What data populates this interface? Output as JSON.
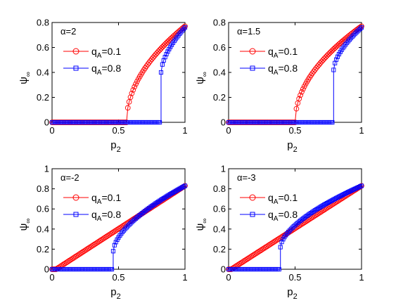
{
  "chart_data": [
    {
      "type": "line",
      "xlabel_main": "p",
      "xlabel_sub": "2",
      "ylabel_main": "ψ",
      "ylabel_sub": "∞",
      "xlim": [
        0,
        1
      ],
      "ylim": [
        0,
        0.8
      ],
      "xticks": [
        0,
        0.5,
        1
      ],
      "xtick_labels": [
        "0",
        "0.5",
        "1"
      ],
      "yticks": [
        0,
        0.2,
        0.4,
        0.6,
        0.8
      ],
      "ytick_labels": [
        "0",
        "0.2",
        "0.4",
        "0.6",
        "0.8"
      ],
      "annotation": "α=2",
      "grid": false,
      "legend_position": "top-left",
      "series": [
        {
          "name_main": "q",
          "name_sub": "A",
          "name_rest": "=0.1",
          "marker": "circle",
          "color": "#ff0000",
          "kind": "sqrt",
          "pc": 0.56,
          "xend": 1.0,
          "yend": 0.77
        },
        {
          "name_main": "q",
          "name_sub": "A",
          "name_rest": "=0.8",
          "marker": "square",
          "color": "#0000ff",
          "kind": "jump",
          "pc": 0.82,
          "xend": 1.0,
          "yend": 0.76,
          "y_jump": 0.4
        }
      ]
    },
    {
      "type": "line",
      "xlabel_main": "p",
      "xlabel_sub": "2",
      "ylabel_main": "ψ",
      "ylabel_sub": "∞",
      "xlim": [
        0,
        1
      ],
      "ylim": [
        0,
        0.8
      ],
      "xticks": [
        0,
        0.5,
        1
      ],
      "xtick_labels": [
        "0",
        "0.5",
        "1"
      ],
      "yticks": [
        0,
        0.2,
        0.4,
        0.6,
        0.8
      ],
      "ytick_labels": [
        "0",
        "0.2",
        "0.4",
        "0.6",
        "0.8"
      ],
      "annotation": "α=1.5",
      "grid": false,
      "legend_position": "top-left",
      "series": [
        {
          "name_main": "q",
          "name_sub": "A",
          "name_rest": "=0.1",
          "marker": "circle",
          "color": "#ff0000",
          "kind": "sqrt",
          "pc": 0.5,
          "xend": 1.0,
          "yend": 0.77
        },
        {
          "name_main": "q",
          "name_sub": "A",
          "name_rest": "=0.8",
          "marker": "square",
          "color": "#0000ff",
          "kind": "jump",
          "pc": 0.79,
          "xend": 1.0,
          "yend": 0.76,
          "y_jump": 0.42
        }
      ]
    },
    {
      "type": "line",
      "xlabel_main": "p",
      "xlabel_sub": "2",
      "ylabel_main": "ψ",
      "ylabel_sub": "∞",
      "xlim": [
        0,
        1
      ],
      "ylim": [
        0,
        1
      ],
      "xticks": [
        0,
        0.5,
        1
      ],
      "xtick_labels": [
        "0",
        "0.5",
        "1"
      ],
      "yticks": [
        0,
        0.2,
        0.4,
        0.6,
        0.8,
        1
      ],
      "ytick_labels": [
        "0",
        "0.2",
        "0.4",
        "0.6",
        "0.8",
        "1"
      ],
      "annotation": "α=-2",
      "grid": false,
      "legend_position": "top-left",
      "series": [
        {
          "name_main": "q",
          "name_sub": "A",
          "name_rest": "=0.1",
          "marker": "circle",
          "color": "#ff0000",
          "kind": "linear",
          "pc": 0.03,
          "xend": 1.0,
          "yend": 0.83
        },
        {
          "name_main": "q",
          "name_sub": "A",
          "name_rest": "=0.8",
          "marker": "square",
          "color": "#0000ff",
          "kind": "jump",
          "pc": 0.46,
          "xend": 1.0,
          "yend": 0.83,
          "y_jump": 0.18
        }
      ]
    },
    {
      "type": "line",
      "xlabel_main": "p",
      "xlabel_sub": "2",
      "ylabel_main": "ψ",
      "ylabel_sub": "∞",
      "xlim": [
        0,
        1
      ],
      "ylim": [
        0,
        1
      ],
      "xticks": [
        0,
        0.5,
        1
      ],
      "xtick_labels": [
        "0",
        "0.5",
        "1"
      ],
      "yticks": [
        0,
        0.2,
        0.4,
        0.6,
        0.8,
        1
      ],
      "ytick_labels": [
        "0",
        "0.2",
        "0.4",
        "0.6",
        "0.8",
        "1"
      ],
      "annotation": "α=-3",
      "grid": false,
      "legend_position": "top-left",
      "series": [
        {
          "name_main": "q",
          "name_sub": "A",
          "name_rest": "=0.1",
          "marker": "circle",
          "color": "#ff0000",
          "kind": "linear",
          "pc": 0.02,
          "xend": 1.0,
          "yend": 0.83
        },
        {
          "name_main": "q",
          "name_sub": "A",
          "name_rest": "=0.8",
          "marker": "square",
          "color": "#0000ff",
          "kind": "jump",
          "pc": 0.39,
          "xend": 1.0,
          "yend": 0.83,
          "y_jump": 0.22
        }
      ]
    }
  ]
}
